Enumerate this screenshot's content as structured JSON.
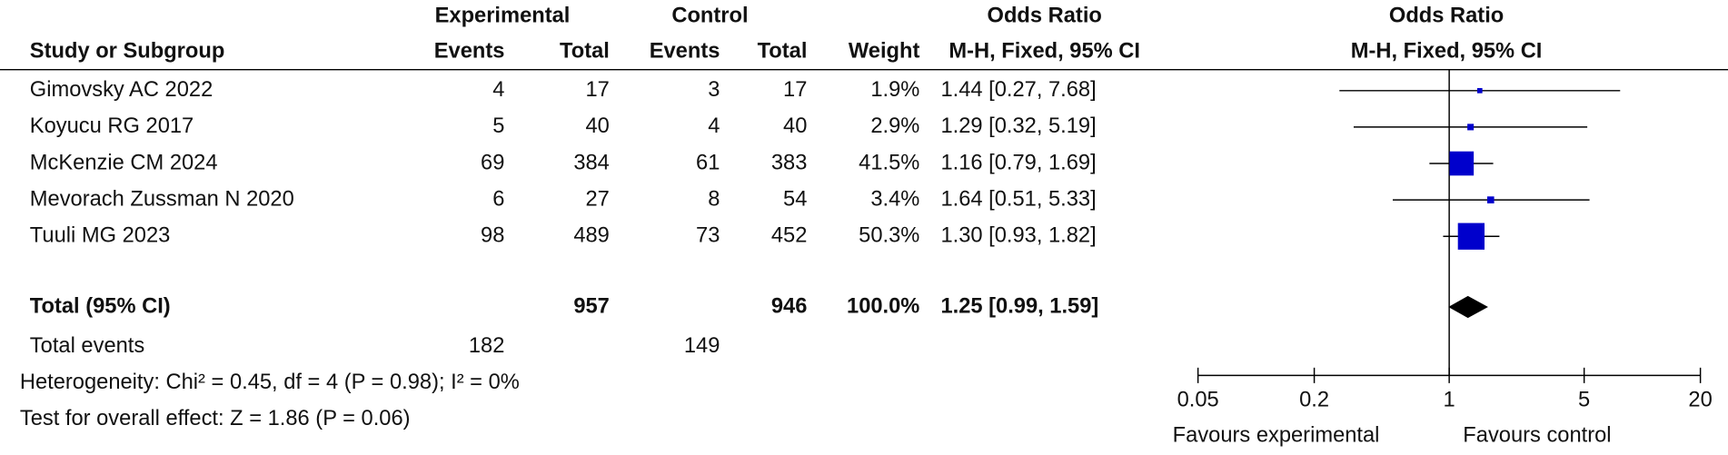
{
  "headers": {
    "experimental": "Experimental",
    "control": "Control",
    "odds_ratio": "Odds Ratio",
    "plot_title": "Odds Ratio",
    "study": "Study or Subgroup",
    "exp_events": "Events",
    "exp_total": "Total",
    "ctrl_events": "Events",
    "ctrl_total": "Total",
    "weight": "Weight",
    "method": "M-H, Fixed, 95% CI",
    "plot_method": "M-H, Fixed, 95% CI"
  },
  "studies": [
    {
      "name": "Gimovsky AC 2022",
      "exp_events": 4,
      "exp_total": 17,
      "ctrl_events": 3,
      "ctrl_total": 17,
      "weight": 1.9,
      "weight_label": "1.9%",
      "or": 1.44,
      "lower": 0.27,
      "upper": 7.68,
      "ci_label": "1.44 [0.27, 7.68]"
    },
    {
      "name": "Koyucu RG 2017",
      "exp_events": 5,
      "exp_total": 40,
      "ctrl_events": 4,
      "ctrl_total": 40,
      "weight": 2.9,
      "weight_label": "2.9%",
      "or": 1.29,
      "lower": 0.32,
      "upper": 5.19,
      "ci_label": "1.29 [0.32, 5.19]"
    },
    {
      "name": "McKenzie CM 2024",
      "exp_events": 69,
      "exp_total": 384,
      "ctrl_events": 61,
      "ctrl_total": 383,
      "weight": 41.5,
      "weight_label": "41.5%",
      "or": 1.16,
      "lower": 0.79,
      "upper": 1.69,
      "ci_label": "1.16 [0.79, 1.69]"
    },
    {
      "name": "Mevorach Zussman N 2020",
      "exp_events": 6,
      "exp_total": 27,
      "ctrl_events": 8,
      "ctrl_total": 54,
      "weight": 3.4,
      "weight_label": "3.4%",
      "or": 1.64,
      "lower": 0.51,
      "upper": 5.33,
      "ci_label": "1.64 [0.51, 5.33]"
    },
    {
      "name": "Tuuli MG 2023",
      "exp_events": 98,
      "exp_total": 489,
      "ctrl_events": 73,
      "ctrl_total": 452,
      "weight": 50.3,
      "weight_label": "50.3%",
      "or": 1.3,
      "lower": 0.93,
      "upper": 1.82,
      "ci_label": "1.30 [0.93, 1.82]"
    }
  ],
  "total": {
    "name": "Total (95% CI)",
    "exp_total": 957,
    "ctrl_total": 946,
    "weight": 100,
    "weight_label": "100.0%",
    "or": 1.25,
    "lower": 0.99,
    "upper": 1.59,
    "ci_label": "1.25 [0.99, 1.59]"
  },
  "total_events": {
    "label": "Total events",
    "exp": 182,
    "ctrl": 149
  },
  "heterogeneity": "Heterogeneity: Chi² = 0.45, df = 4 (P = 0.98); I² = 0%",
  "overall": "Test for overall effect: Z = 1.86 (P = 0.06)",
  "axis": {
    "log": true,
    "xlim": [
      0.05,
      20
    ],
    "xticks": [
      0.05,
      0.2,
      1,
      5,
      20
    ],
    "left_label": "Favours experimental",
    "right_label": "Favours control",
    "box_color": "#0000cc"
  }
}
